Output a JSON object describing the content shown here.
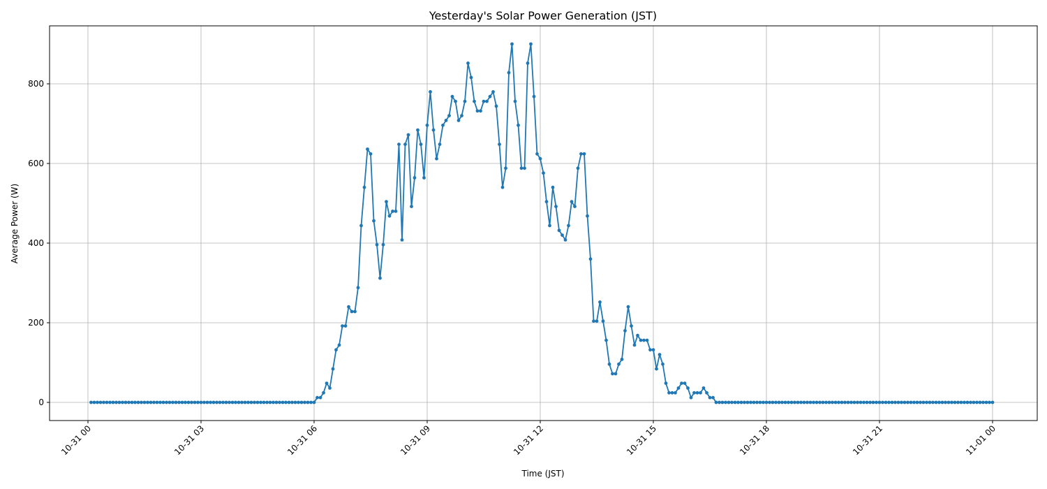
{
  "chart_data": {
    "type": "line",
    "title": "Yesterday's Solar Power Generation (JST)",
    "xlabel": "Time (JST)",
    "ylabel": "Average Power (W)",
    "ylim": [
      -45,
      940
    ],
    "grid": true,
    "marker": "circle",
    "line_color": "#1f77b4",
    "interval_minutes": 5,
    "x_start": "10-31 00:05",
    "x_end": "11-01 00:00",
    "x_ticks": [
      "10-31 00",
      "10-31 03",
      "10-31 06",
      "10-31 09",
      "10-31 12",
      "10-31 15",
      "10-31 18",
      "10-31 21",
      "11-01 00"
    ],
    "y_ticks": [
      0,
      200,
      400,
      600,
      800
    ],
    "series": [
      {
        "name": "Average Power (W)",
        "segments": [
          {
            "from": "10-31 00:05",
            "to": "10-31 06:00",
            "constant": 0
          },
          {
            "from": "10-31 06:05",
            "values": [
              12,
              12,
              24,
              48,
              36,
              84,
              132,
              144,
              192,
              192,
              240,
              228,
              228,
              288,
              444,
              540,
              636,
              624,
              456,
              396,
              312,
              396,
              504,
              468,
              480,
              480,
              648,
              408,
              648,
              672,
              492,
              564,
              684,
              648,
              564,
              696,
              780,
              684,
              612,
              648,
              696,
              708,
              720,
              768,
              756,
              708,
              720,
              756,
              852,
              816,
              756,
              732,
              732,
              756,
              756,
              768,
              780,
              744,
              648,
              540,
              588,
              828,
              900,
              756,
              696,
              588,
              588,
              852,
              900,
              768,
              624,
              612,
              576,
              504,
              444,
              540,
              492,
              432,
              420,
              408,
              444,
              504,
              492,
              588,
              624,
              624,
              468,
              360,
              204,
              204,
              252,
              204,
              156,
              96,
              72,
              72,
              96,
              108,
              180,
              240,
              192,
              144,
              168,
              156,
              156,
              156,
              132,
              132,
              84,
              120,
              96,
              48,
              24,
              24,
              24,
              36,
              48,
              48,
              36,
              12,
              24,
              24,
              24,
              36,
              24,
              12,
              12
            ]
          },
          {
            "from": "10-31 16:40",
            "to": "11-01 00:00",
            "constant": 0
          }
        ]
      }
    ]
  }
}
